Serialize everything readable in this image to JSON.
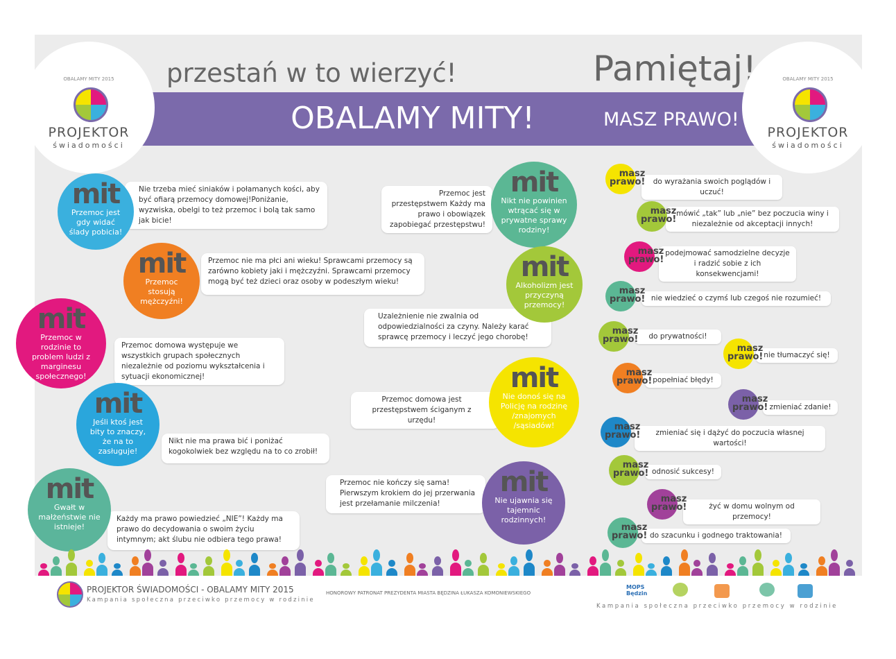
{
  "header": {
    "tagline": "przestań w to wierzyć!",
    "title": "OBALAMY MITY!",
    "remember": "Pamiętaj!",
    "rights_title": "MASZ PRAWO!"
  },
  "logo": {
    "year": "OBALAMY MITY 2015",
    "name": "PROJEKTOR",
    "sub": "świadomości"
  },
  "myth_label": "mit",
  "myths": [
    {
      "myth": "Przemoc jest gdy widać ślady pobicia!",
      "truth": "Nie trzeba mieć siniaków i połamanych kości, aby być ofiarą przemocy domowej!Poniżanie, wyzwiska, obelgi to też przemoc i bolą tak samo jak bicie!",
      "color": "#3ab0de"
    },
    {
      "myth": "Przemoc stosują mężczyźni!",
      "truth": "Przemoc nie ma płci ani wieku! Sprawcami przemocy są zarówno kobiety jaki i mężczyźni. Sprawcami przemocy mogą być też dzieci oraz osoby w podeszłym wieku!",
      "color": "#f07f22"
    },
    {
      "myth": "Przemoc w rodzinie to problem ludzi z marginesu społecznego!",
      "truth": "Przemoc domowa występuje we wszystkich grupach społecznych niezależnie od poziomu wykształcenia i sytuacji ekonomicznej!",
      "color": "#e2197f"
    },
    {
      "myth": "Jeśli ktoś jest bity to znaczy, że na to zasługuje!",
      "truth": "Nikt nie ma prawa bić i poniżać kogokolwiek bez względu na to co zrobił!",
      "color": "#2aa6dc"
    },
    {
      "myth": "Gwałt w małżeństwie nie istnieje!",
      "truth": "Każdy ma prawo powiedzieć „NIE”! Każdy ma prawo do decydowania o swoim życiu intymnym; akt ślubu nie odbiera tego prawa!",
      "color": "#5bb59b"
    },
    {
      "myth": "Nikt nie powinien wtrącać się w prywatne sprawy rodziny!",
      "truth": "Przemoc jest przestępstwem Każdy ma prawo i obowiązek zapobiegać przestępstwu!",
      "color": "#5bb794"
    },
    {
      "myth": "Alkoholizm jest przyczyną przemocy!",
      "truth": "Uzależnienie nie zwalnia od odpowiedzialności za czyny. Należy karać sprawcę przemocy i leczyć jego chorobę!",
      "color": "#a3c83a"
    },
    {
      "myth": "Nie donoś się na Policję na rodzinę /znajomych /sąsiadów!",
      "truth": "Przemoc domowa jest przestępstwem ściganym z urzędu!",
      "color": "#f5e400"
    },
    {
      "myth": "Nie ujawnia się tajemnic rodzinnych!",
      "truth": "Przemoc nie kończy się sama! Pierwszym krokiem do jej przerwania jest przełamanie milczenia!",
      "color": "#7b61a8"
    }
  ],
  "badge": [
    "masz",
    "prawo!"
  ],
  "rights": [
    {
      "text": "do wyrażania swoich poglądów i uczuć!",
      "color": "#f5e400"
    },
    {
      "text": "mówić „tak” lub „nie” bez poczucia winy i niezależnie od akceptacji innych!",
      "color": "#a3c83a"
    },
    {
      "text": "podejmować samodzielne decyzje i radzić sobie z ich konsekwencjami!",
      "color": "#e2197f"
    },
    {
      "text": "nie wiedzieć o czymś lub czegoś nie rozumieć!",
      "color": "#5bb794"
    },
    {
      "text": "do prywatności!",
      "color": "#a3c83a"
    },
    {
      "text": "nie tłumaczyć się!",
      "color": "#f5e400"
    },
    {
      "text": "popełniać błędy!",
      "color": "#f07f22"
    },
    {
      "text": "zmieniać zdanie!",
      "color": "#7b61a8"
    },
    {
      "text": "zmieniać się i dążyć do poczucia własnej wartości!",
      "color": "#1e88c8"
    },
    {
      "text": "odnosić sukcesy!",
      "color": "#a3c83a"
    },
    {
      "text": "żyć w domu wolnym od przemocy!",
      "color": "#a1419a"
    },
    {
      "text": "do szacunku i godnego traktowania!",
      "color": "#5bb794"
    }
  ],
  "footer": {
    "project": "PROJEKTOR ŚWIADOMOŚCI - OBALAMY MITY 2015",
    "campaign": "Kampania społeczna przeciwko przemocy w rodzinie",
    "patronage": "HONOROWY PATRONAT PREZYDENTA MIASTA BĘDZINA ŁUKASZA KOMONIEWSKIEGO",
    "mops": "MOPS",
    "city": "Będzin",
    "campaign_right": "Kampania społeczna przeciwko przemocy w rodzinie"
  }
}
